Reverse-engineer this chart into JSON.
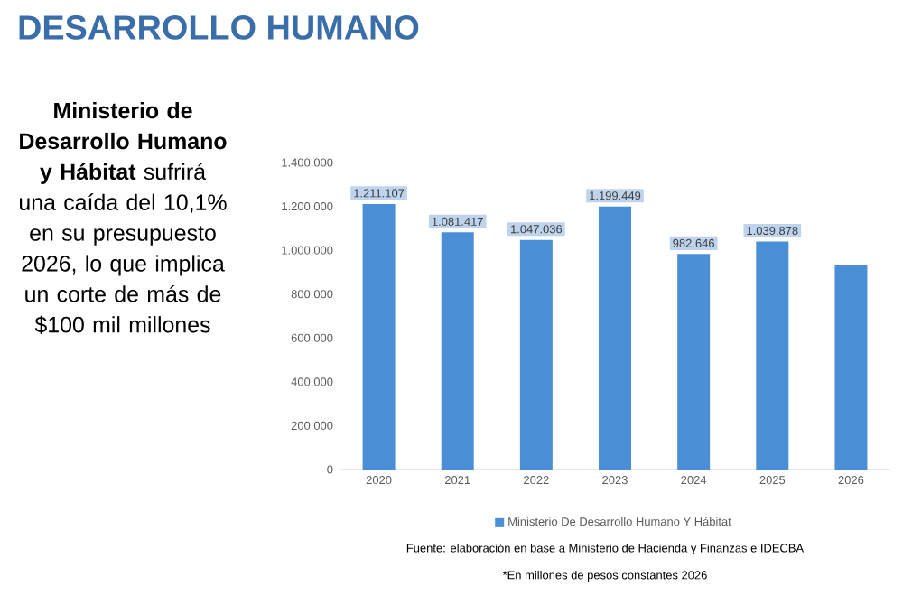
{
  "chart_data": {
    "type": "bar",
    "title": "DESARROLLO HUMANO",
    "categories": [
      "2020",
      "2021",
      "2022",
      "2023",
      "2024",
      "2025",
      "2026"
    ],
    "series": [
      {
        "name": "Ministerio De Desarrollo Humano Y Hábitat",
        "color": "#4a8fd6",
        "values": [
          1211107,
          1081417,
          1047036,
          1199449,
          982646,
          1039878,
          934600
        ],
        "value_labels": [
          "1.211.107",
          "1.081.417",
          "1.047.036",
          "1.199.449",
          "982.646",
          "1.039.878",
          null
        ]
      }
    ],
    "ylim": [
      0,
      1400000
    ],
    "yticks": [
      {
        "value": 0,
        "label": "0"
      },
      {
        "value": 200000,
        "label": "200.000"
      },
      {
        "value": 400000,
        "label": "400.000"
      },
      {
        "value": 600000,
        "label": "600.000"
      },
      {
        "value": 800000,
        "label": "800.000"
      },
      {
        "value": 1000000,
        "label": "1.000.000"
      },
      {
        "value": 1200000,
        "label": "1.200.000"
      },
      {
        "value": 1400000,
        "label": "1.400.000"
      }
    ],
    "legend": "bottom",
    "grid": false,
    "annotations": [
      "**Ministerio de Desarrollo Humano y Hábitat** sufrirá una caída del 10,1% en su presupuesto 2026, lo que implica un corte de más de $100 mil millones",
      "Fuente: elaboración en base a Ministerio de Hacienda y Finanzas e IDECBA",
      "*En millones de pesos constantes 2026"
    ]
  }
}
